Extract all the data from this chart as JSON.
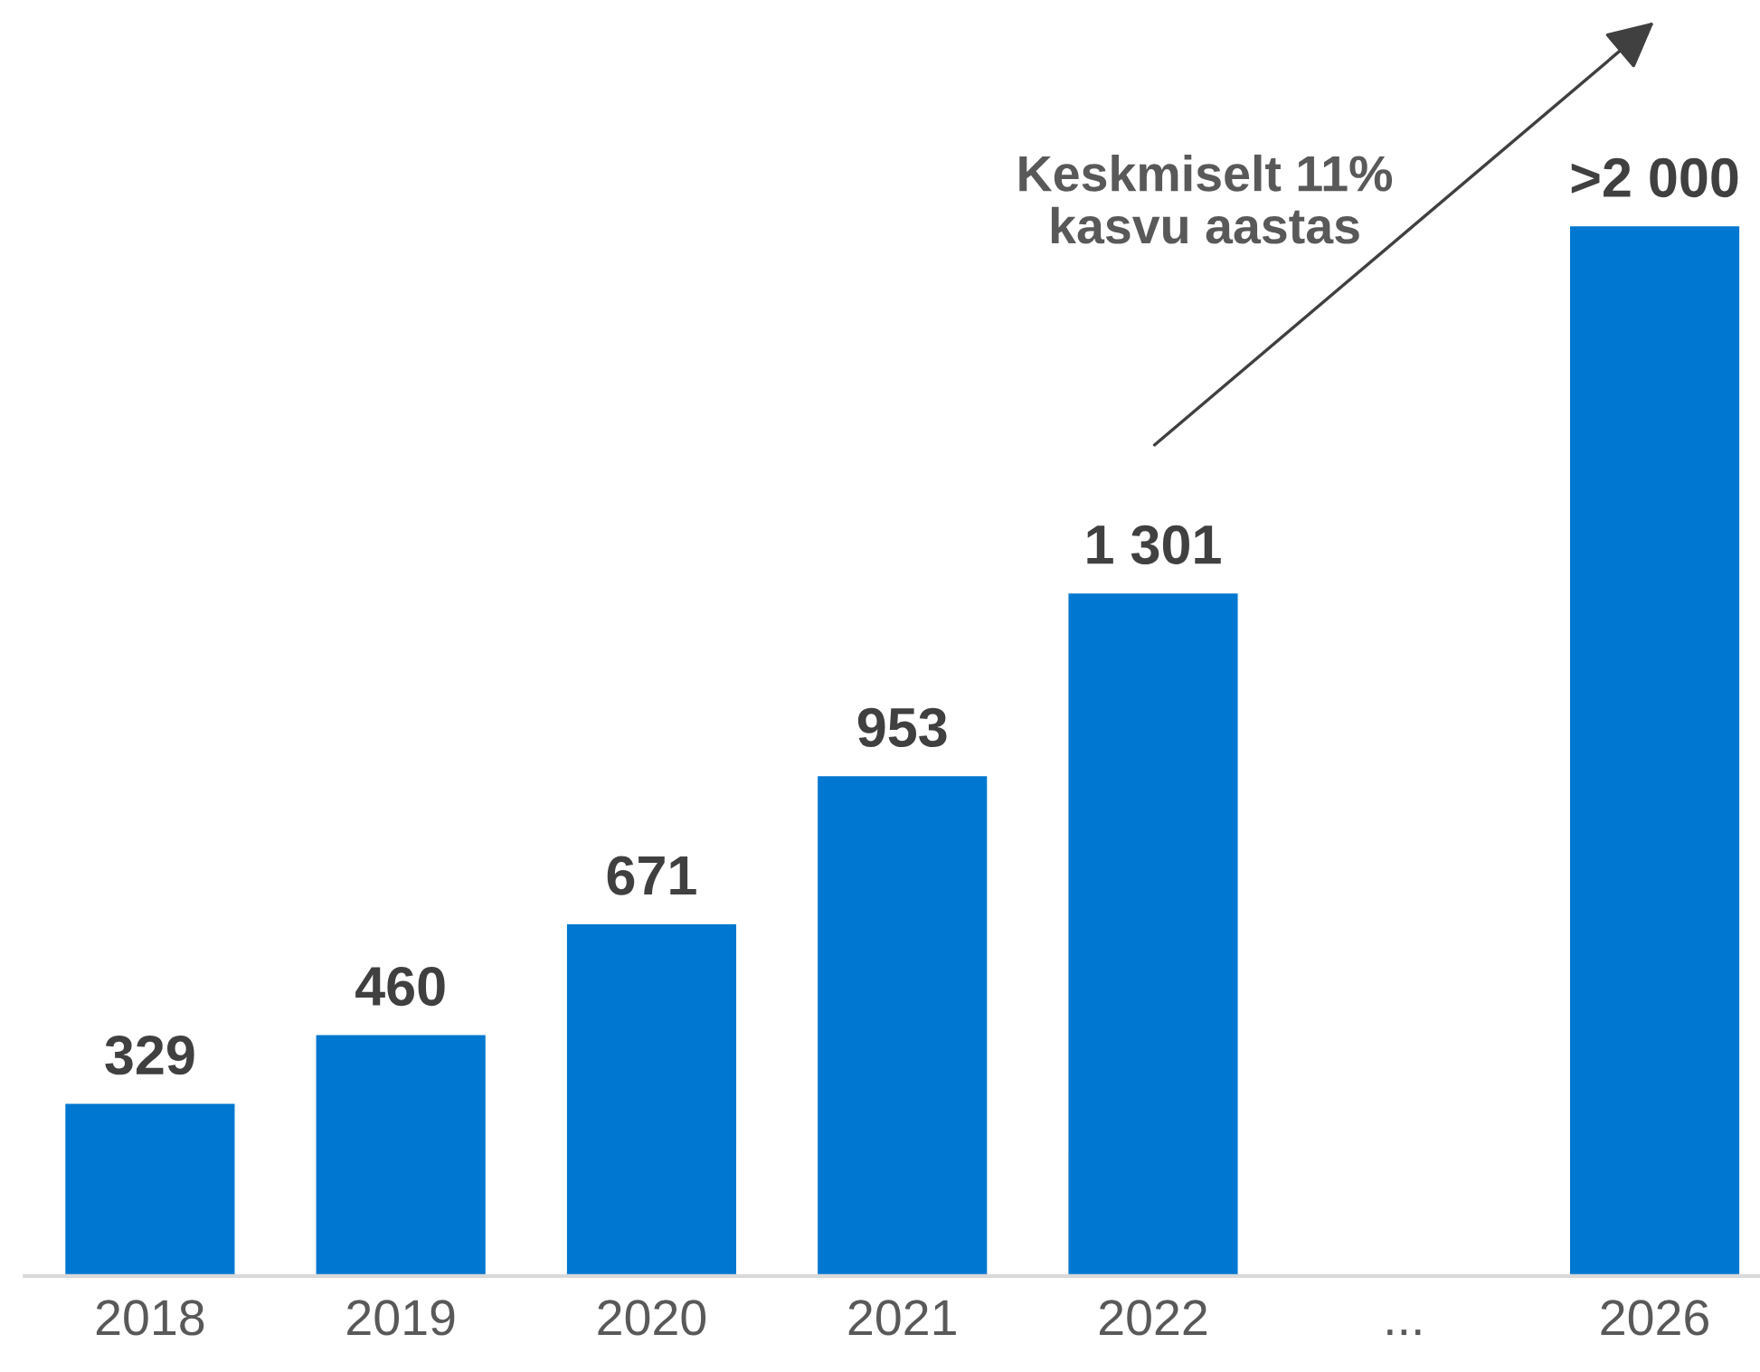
{
  "chart_data": {
    "type": "bar",
    "categories": [
      "2018",
      "2019",
      "2020",
      "2021",
      "2022",
      "...",
      "2026"
    ],
    "values": [
      329,
      460,
      671,
      953,
      1301,
      null,
      2000
    ],
    "value_labels": [
      "329",
      "460",
      "671",
      "953",
      "1 301",
      null,
      ">2 000"
    ],
    "color": "#0077d0",
    "annotations": [
      "Keskmiselt 11%\nkasvu aastas"
    ],
    "grid": false,
    "legend": false
  }
}
